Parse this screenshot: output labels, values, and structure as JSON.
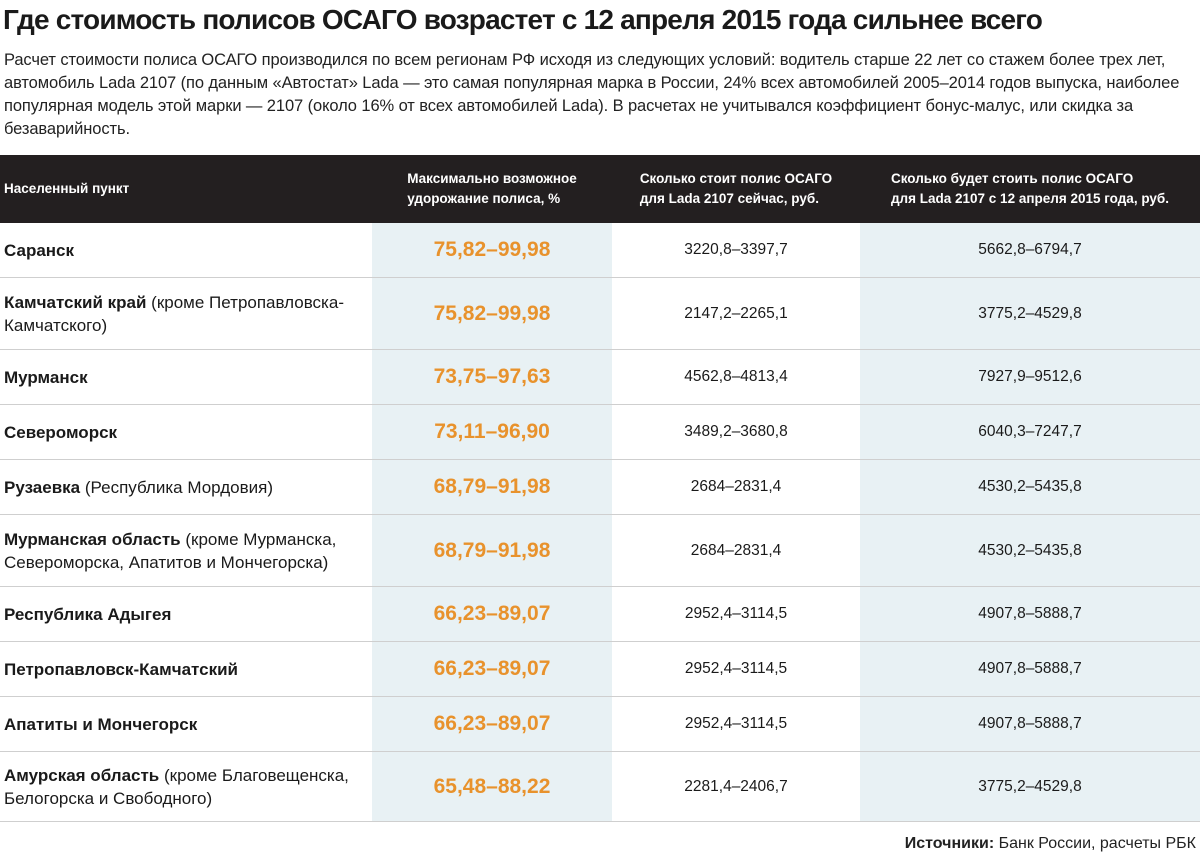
{
  "title": "Где стоимость полисов ОСАГО возрастет с 12 апреля 2015 года сильнее всего",
  "intro": "Расчет стоимости полиса ОСАГО производился по всем регионам РФ исходя из следующих условий: водитель старше 22 лет со стажем более трех лет, автомобиль Lada 2107 (по данным «Автостат» Lada — это самая популярная марка в России, 24% всех автомобилей 2005–2014 годов выпуска, наиболее популярная модель этой марки — 2107 (около 16% от всех автомобилей Lada). В расчетах не учитывался коэффициент бонус-малус, или скидка за безаварийность.",
  "colors": {
    "header_bg": "#231f20",
    "accent": "#e8922c",
    "column_tint": "#e8f1f4"
  },
  "chart_data": {
    "type": "table",
    "columns": [
      "Населенный пункт",
      "Максимально возможное\nудорожание полиса, %",
      "Сколько стоит полис ОСАГО\nдля Lada 2107 сейчас, руб.",
      "Сколько будет стоить полис ОСАГО\nдля Lada 2107 с 12 апреля 2015 года, руб."
    ],
    "rows": [
      {
        "name": "Саранск",
        "note": "",
        "increase": "75,82–99,98",
        "now": "3220,8–3397,7",
        "after": "5662,8–6794,7"
      },
      {
        "name": "Камчатский край",
        "note": "(кроме Петропавловска-Камчатского)",
        "increase": "75,82–99,98",
        "now": "2147,2–2265,1",
        "after": "3775,2–4529,8"
      },
      {
        "name": "Мурманск",
        "note": "",
        "increase": "73,75–97,63",
        "now": "4562,8–4813,4",
        "after": "7927,9–9512,6"
      },
      {
        "name": "Североморск",
        "note": "",
        "increase": "73,11–96,90",
        "now": "3489,2–3680,8",
        "after": "6040,3–7247,7"
      },
      {
        "name": "Рузаевка",
        "note": "(Республика Мордовия)",
        "increase": "68,79–91,98",
        "now": "2684–2831,4",
        "after": "4530,2–5435,8"
      },
      {
        "name": "Мурманская область",
        "note": "(кроме Мурманска, Североморска, Апатитов и Мончегорска)",
        "increase": "68,79–91,98",
        "now": "2684–2831,4",
        "after": "4530,2–5435,8"
      },
      {
        "name": "Республика Адыгея",
        "note": "",
        "increase": "66,23–89,07",
        "now": "2952,4–3114,5",
        "after": "4907,8–5888,7"
      },
      {
        "name": "Петропавловск-Камчатский",
        "note": "",
        "increase": "66,23–89,07",
        "now": "2952,4–3114,5",
        "after": "4907,8–5888,7"
      },
      {
        "name": "Апатиты и Мончегорск",
        "note": "",
        "increase": "66,23–89,07",
        "now": "2952,4–3114,5",
        "after": "4907,8–5888,7"
      },
      {
        "name": "Амурская область",
        "note": "(кроме Благовещенска, Белогорска и Свободного)",
        "increase": "65,48–88,22",
        "now": "2281,4–2406,7",
        "after": "3775,2–4529,8"
      }
    ]
  },
  "source": {
    "label": "Источники:",
    "text": "Банк России, расчеты РБК"
  }
}
